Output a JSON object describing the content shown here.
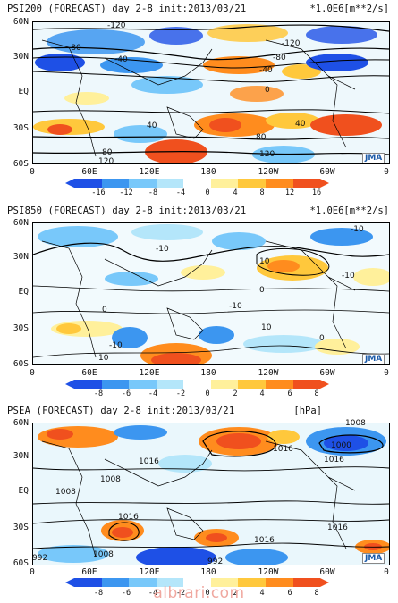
{
  "panels": [
    {
      "title": "PSI200 (FORECAST) day 2-8 init:2013/03/21",
      "units": "*1.0E6[m**2/s]",
      "lat_labels": [
        "60N",
        "30N",
        "EQ",
        "30S",
        "60S"
      ],
      "lon_labels": [
        "0",
        "60E",
        "120E",
        "180",
        "120W",
        "60W",
        "0"
      ],
      "colorbar_labels": [
        "-16",
        "-12",
        "-8",
        "-4",
        "0",
        "4",
        "8",
        "12",
        "16"
      ],
      "contour_labels": [
        "-120",
        "-80",
        "-40",
        "-120",
        "-80",
        "-40",
        "0",
        "40",
        "40",
        "80",
        "80",
        "120",
        "120"
      ],
      "logo": "JMA"
    },
    {
      "title": "PSI850 (FORECAST) day 2-8 init:2013/03/21",
      "units": "*1.0E6[m**2/s]",
      "lat_labels": [
        "60N",
        "30N",
        "EQ",
        "30S",
        "60S"
      ],
      "lon_labels": [
        "0",
        "60E",
        "120E",
        "180",
        "120W",
        "60W",
        "0"
      ],
      "colorbar_labels": [
        "-8",
        "-6",
        "-4",
        "-2",
        "0",
        "2",
        "4",
        "6",
        "8"
      ],
      "contour_labels": [
        "-10",
        "-10",
        "-10",
        "10",
        "10",
        "0",
        "0",
        "-10",
        "-10",
        "10",
        "0"
      ],
      "logo": "JMA"
    },
    {
      "title": "PSEA (FORECAST) day 2-8 init:2013/03/21",
      "units": "[hPa]",
      "lat_labels": [
        "60N",
        "30N",
        "EQ",
        "30S",
        "60S"
      ],
      "lon_labels": [
        "0",
        "60E",
        "120E",
        "180",
        "120W",
        "60W",
        "0"
      ],
      "colorbar_labels": [
        "-8",
        "-6",
        "-4",
        "-2",
        "0",
        "2",
        "4",
        "6",
        "8"
      ],
      "contour_labels": [
        "1008",
        "1000",
        "1016",
        "1016",
        "1016",
        "1008",
        "1008",
        "1016",
        "1016",
        "1016",
        "992",
        "1008",
        "992"
      ],
      "logo": "JMA"
    }
  ],
  "watermark": "albrari.com",
  "colors": {
    "scale": [
      "#1e50e6",
      "#3c96f0",
      "#78c8fa",
      "#b4e6fa",
      "#ffffff",
      "#fff09b",
      "#ffc83c",
      "#ff8c1e",
      "#f0501e"
    ],
    "coast": "#000000",
    "contour": "#000000"
  }
}
